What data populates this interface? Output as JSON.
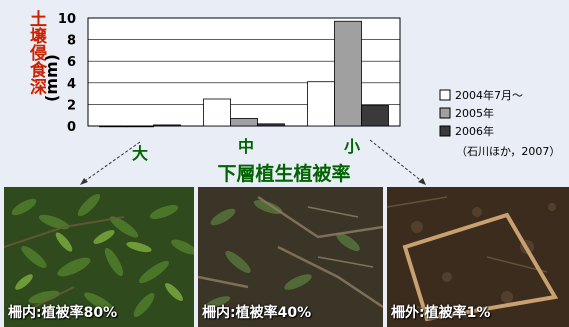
{
  "chart_data": {
    "type": "bar",
    "ylabel_top": "土壌侵食深",
    "ylabel_unit": "(mm)",
    "xlabel": "下層植生植被率",
    "ylim": [
      0,
      10
    ],
    "yticks": [
      "0",
      "2",
      "4",
      "6",
      "8",
      "10"
    ],
    "grid": true,
    "legend_placement": "right",
    "categories": [
      "大",
      "中",
      "小"
    ],
    "series": [
      {
        "name": "2004年7月～",
        "values": [
          0.0,
          2.5,
          4.1
        ],
        "color": "#ffffff"
      },
      {
        "name": "2005年",
        "values": [
          0.0,
          0.7,
          9.7
        ],
        "color": "#a0a0a0"
      },
      {
        "name": "2006年",
        "values": [
          0.1,
          0.2,
          1.9
        ],
        "color": "#3a3a3a"
      }
    ],
    "source_note": "（石川ほか，2007）"
  },
  "colors": {
    "label_green": "#006400",
    "axis_title_red": "#cc2200",
    "background": "#e9eef6"
  },
  "photos": [
    {
      "caption": "柵内:植被率80%",
      "vegetation_cover_percent": 80
    },
    {
      "caption": "柵内:植被率40%",
      "vegetation_cover_percent": 40
    },
    {
      "caption": "柵外:植被率1%",
      "vegetation_cover_percent": 1
    }
  ]
}
